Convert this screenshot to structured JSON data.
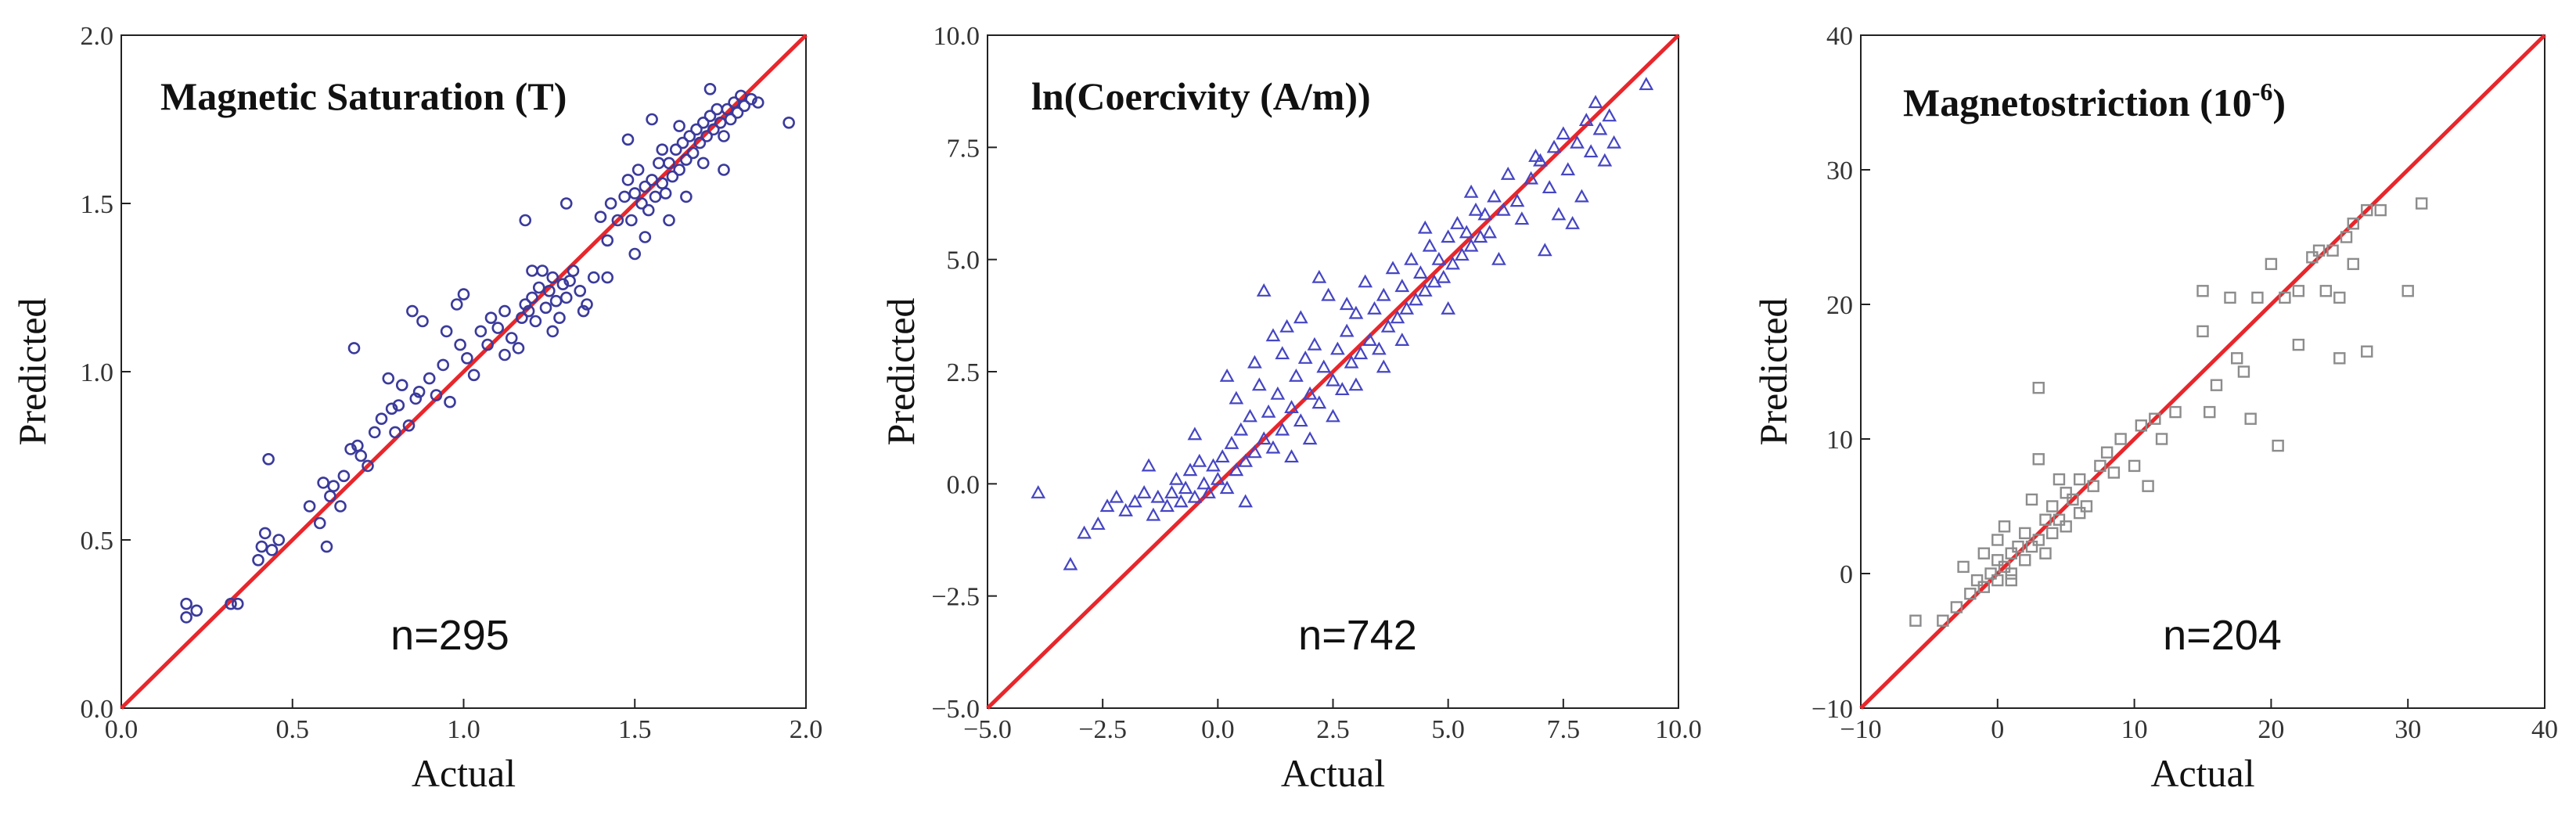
{
  "colors": {
    "identity_line": "#e8262b",
    "circle_marker": "#3a3a9c",
    "triangle_marker": "#4545c4",
    "square_marker": "#8c8c8c"
  },
  "chart_data": [
    {
      "type": "scatter",
      "title": "Magnetic Saturation (T)",
      "xlabel": "Actual",
      "ylabel": "Predicted",
      "xlim": [
        0.0,
        2.0
      ],
      "ylim": [
        0.0,
        2.0
      ],
      "xticks": [
        "0.0",
        "0.5",
        "1.0",
        "1.5",
        "2.0"
      ],
      "yticks": [
        "0.0",
        "0.5",
        "1.0",
        "1.5",
        "2.0"
      ],
      "annotation": "n=295",
      "n": 295,
      "marker": "circle",
      "identity_line": true,
      "points": [
        [
          0.19,
          0.27
        ],
        [
          0.19,
          0.31
        ],
        [
          0.22,
          0.29
        ],
        [
          0.32,
          0.31
        ],
        [
          0.34,
          0.31
        ],
        [
          0.4,
          0.44
        ],
        [
          0.41,
          0.48
        ],
        [
          0.42,
          0.52
        ],
        [
          0.43,
          0.74
        ],
        [
          0.44,
          0.47
        ],
        [
          0.46,
          0.5
        ],
        [
          0.58,
          0.55
        ],
        [
          0.59,
          0.67
        ],
        [
          0.6,
          0.48
        ],
        [
          0.61,
          0.63
        ],
        [
          0.62,
          0.66
        ],
        [
          0.65,
          0.69
        ],
        [
          0.67,
          0.77
        ],
        [
          0.68,
          1.07
        ],
        [
          0.69,
          0.78
        ],
        [
          0.7,
          0.75
        ],
        [
          0.72,
          0.72
        ],
        [
          0.74,
          0.82
        ],
        [
          0.76,
          0.86
        ],
        [
          0.79,
          0.89
        ],
        [
          0.8,
          0.82
        ],
        [
          0.81,
          0.9
        ],
        [
          0.82,
          0.96
        ],
        [
          0.84,
          0.84
        ],
        [
          0.85,
          1.18
        ],
        [
          0.86,
          0.92
        ],
        [
          0.87,
          0.94
        ],
        [
          0.88,
          1.15
        ],
        [
          0.9,
          0.98
        ],
        [
          0.92,
          0.93
        ],
        [
          0.94,
          1.02
        ],
        [
          0.96,
          0.91
        ],
        [
          0.98,
          1.2
        ],
        [
          0.99,
          1.08
        ],
        [
          1.0,
          1.23
        ],
        [
          1.01,
          1.04
        ],
        [
          1.03,
          0.99
        ],
        [
          1.05,
          1.12
        ],
        [
          1.07,
          1.08
        ],
        [
          1.08,
          1.16
        ],
        [
          1.1,
          1.13
        ],
        [
          1.12,
          1.05
        ],
        [
          1.14,
          1.1
        ],
        [
          1.16,
          1.07
        ],
        [
          1.17,
          1.16
        ],
        [
          1.18,
          1.2
        ],
        [
          1.19,
          1.18
        ],
        [
          1.2,
          1.22
        ],
        [
          1.21,
          1.15
        ],
        [
          1.22,
          1.25
        ],
        [
          1.23,
          1.3
        ],
        [
          1.24,
          1.19
        ],
        [
          1.25,
          1.24
        ],
        [
          1.26,
          1.28
        ],
        [
          1.27,
          1.21
        ],
        [
          1.28,
          1.16
        ],
        [
          1.29,
          1.26
        ],
        [
          1.3,
          1.22
        ],
        [
          1.31,
          1.27
        ],
        [
          1.32,
          1.3
        ],
        [
          1.34,
          1.24
        ],
        [
          1.36,
          1.2
        ],
        [
          1.38,
          1.28
        ],
        [
          1.4,
          1.46
        ],
        [
          1.42,
          1.39
        ],
        [
          1.43,
          1.5
        ],
        [
          1.45,
          1.45
        ],
        [
          1.47,
          1.52
        ],
        [
          1.48,
          1.57
        ],
        [
          1.49,
          1.45
        ],
        [
          1.5,
          1.53
        ],
        [
          1.51,
          1.6
        ],
        [
          1.52,
          1.5
        ],
        [
          1.53,
          1.55
        ],
        [
          1.54,
          1.48
        ],
        [
          1.55,
          1.57
        ],
        [
          1.56,
          1.52
        ],
        [
          1.57,
          1.62
        ],
        [
          1.58,
          1.56
        ],
        [
          1.59,
          1.53
        ],
        [
          1.6,
          1.62
        ],
        [
          1.61,
          1.58
        ],
        [
          1.62,
          1.66
        ],
        [
          1.63,
          1.6
        ],
        [
          1.64,
          1.68
        ],
        [
          1.65,
          1.63
        ],
        [
          1.66,
          1.7
        ],
        [
          1.67,
          1.65
        ],
        [
          1.68,
          1.72
        ],
        [
          1.69,
          1.68
        ],
        [
          1.7,
          1.74
        ],
        [
          1.71,
          1.7
        ],
        [
          1.72,
          1.76
        ],
        [
          1.73,
          1.72
        ],
        [
          1.74,
          1.78
        ],
        [
          1.75,
          1.74
        ],
        [
          1.76,
          1.7
        ],
        [
          1.77,
          1.78
        ],
        [
          1.78,
          1.75
        ],
        [
          1.79,
          1.8
        ],
        [
          1.8,
          1.77
        ],
        [
          1.81,
          1.82
        ],
        [
          1.82,
          1.79
        ],
        [
          1.84,
          1.81
        ],
        [
          1.86,
          1.8
        ],
        [
          1.95,
          1.74
        ],
        [
          1.18,
          1.45
        ],
        [
          1.3,
          1.5
        ],
        [
          1.42,
          1.28
        ],
        [
          1.53,
          1.4
        ],
        [
          1.6,
          1.45
        ],
        [
          1.65,
          1.52
        ],
        [
          1.7,
          1.62
        ],
        [
          1.55,
          1.75
        ],
        [
          1.48,
          1.69
        ],
        [
          1.5,
          1.35
        ],
        [
          1.2,
          1.3
        ],
        [
          1.12,
          1.18
        ],
        [
          0.95,
          1.12
        ],
        [
          0.78,
          0.98
        ],
        [
          0.64,
          0.6
        ],
        [
          0.55,
          0.6
        ],
        [
          1.35,
          1.18
        ],
        [
          1.26,
          1.12
        ],
        [
          1.58,
          1.66
        ],
        [
          1.63,
          1.73
        ],
        [
          1.76,
          1.6
        ],
        [
          1.72,
          1.84
        ]
      ]
    },
    {
      "type": "scatter",
      "title": "ln(Coercivity (A/m))",
      "xlabel": "Actual",
      "ylabel": "Predicted",
      "xlim": [
        -5.0,
        10.0
      ],
      "ylim": [
        -5.0,
        10.0
      ],
      "xticks": [
        "−5.0",
        "−2.5",
        "0.0",
        "2.5",
        "5.0",
        "7.5",
        "10.0"
      ],
      "yticks": [
        "−5.0",
        "−2.5",
        "0.0",
        "2.5",
        "5.0",
        "7.5",
        "10.0"
      ],
      "annotation": "n=742",
      "n": 742,
      "marker": "triangle",
      "identity_line": true,
      "points": [
        [
          -3.9,
          -0.2
        ],
        [
          -3.2,
          -1.8
        ],
        [
          -2.9,
          -1.1
        ],
        [
          -2.4,
          -0.5
        ],
        [
          -2.2,
          -0.3
        ],
        [
          -2.0,
          -0.6
        ],
        [
          -1.8,
          -0.4
        ],
        [
          -1.6,
          -0.2
        ],
        [
          -1.4,
          -0.7
        ],
        [
          -1.3,
          -0.3
        ],
        [
          -1.1,
          -0.5
        ],
        [
          -1.0,
          -0.2
        ],
        [
          -0.9,
          0.1
        ],
        [
          -0.8,
          -0.4
        ],
        [
          -0.7,
          -0.1
        ],
        [
          -0.6,
          0.3
        ],
        [
          -0.5,
          -0.3
        ],
        [
          -0.4,
          0.5
        ],
        [
          -0.3,
          0.0
        ],
        [
          -0.2,
          -0.2
        ],
        [
          -0.1,
          0.4
        ],
        [
          0.0,
          0.1
        ],
        [
          0.1,
          0.6
        ],
        [
          0.2,
          -0.1
        ],
        [
          0.3,
          0.9
        ],
        [
          0.4,
          0.3
        ],
        [
          0.5,
          1.2
        ],
        [
          0.6,
          0.5
        ],
        [
          0.7,
          1.5
        ],
        [
          0.8,
          0.7
        ],
        [
          0.9,
          2.2
        ],
        [
          1.0,
          1.0
        ],
        [
          1.0,
          4.3
        ],
        [
          1.1,
          1.6
        ],
        [
          1.2,
          0.8
        ],
        [
          1.3,
          2.0
        ],
        [
          1.4,
          1.2
        ],
        [
          1.5,
          3.5
        ],
        [
          1.6,
          1.7
        ],
        [
          1.7,
          2.4
        ],
        [
          1.8,
          1.4
        ],
        [
          1.9,
          2.8
        ],
        [
          2.0,
          2.0
        ],
        [
          2.1,
          3.1
        ],
        [
          2.2,
          1.8
        ],
        [
          2.3,
          2.6
        ],
        [
          2.4,
          4.2
        ],
        [
          2.5,
          2.3
        ],
        [
          2.6,
          3.0
        ],
        [
          2.7,
          2.1
        ],
        [
          2.8,
          3.4
        ],
        [
          2.9,
          2.7
        ],
        [
          3.0,
          3.8
        ],
        [
          3.1,
          2.9
        ],
        [
          3.2,
          4.5
        ],
        [
          3.3,
          3.2
        ],
        [
          3.4,
          3.9
        ],
        [
          3.5,
          3.0
        ],
        [
          3.6,
          4.2
        ],
        [
          3.7,
          3.5
        ],
        [
          3.8,
          4.8
        ],
        [
          3.9,
          3.7
        ],
        [
          4.0,
          4.4
        ],
        [
          4.1,
          3.9
        ],
        [
          4.2,
          5.0
        ],
        [
          4.3,
          4.1
        ],
        [
          4.4,
          4.7
        ],
        [
          4.5,
          4.3
        ],
        [
          4.6,
          5.3
        ],
        [
          4.7,
          4.5
        ],
        [
          4.8,
          5.0
        ],
        [
          4.9,
          4.6
        ],
        [
          5.0,
          5.5
        ],
        [
          5.1,
          4.9
        ],
        [
          5.2,
          5.8
        ],
        [
          5.3,
          5.1
        ],
        [
          5.4,
          5.6
        ],
        [
          5.5,
          5.3
        ],
        [
          5.6,
          6.1
        ],
        [
          5.7,
          5.5
        ],
        [
          5.8,
          6.0
        ],
        [
          5.9,
          5.6
        ],
        [
          6.0,
          6.4
        ],
        [
          6.2,
          6.1
        ],
        [
          6.3,
          6.9
        ],
        [
          6.5,
          6.3
        ],
        [
          6.6,
          5.9
        ],
        [
          6.8,
          6.8
        ],
        [
          7.0,
          7.2
        ],
        [
          7.1,
          5.2
        ],
        [
          7.2,
          6.6
        ],
        [
          7.3,
          7.5
        ],
        [
          7.4,
          6.0
        ],
        [
          7.5,
          7.8
        ],
        [
          7.6,
          7.0
        ],
        [
          7.7,
          5.8
        ],
        [
          7.8,
          7.6
        ],
        [
          7.9,
          6.4
        ],
        [
          8.0,
          8.1
        ],
        [
          8.1,
          7.4
        ],
        [
          8.2,
          8.5
        ],
        [
          8.3,
          7.9
        ],
        [
          8.5,
          8.2
        ],
        [
          8.6,
          7.6
        ],
        [
          9.3,
          8.9
        ],
        [
          0.4,
          1.9
        ],
        [
          0.8,
          2.7
        ],
        [
          1.2,
          3.3
        ],
        [
          1.6,
          0.6
        ],
        [
          2.0,
          1.0
        ],
        [
          2.5,
          1.5
        ],
        [
          3.0,
          2.2
        ],
        [
          -0.5,
          1.1
        ],
        [
          0.2,
          2.4
        ],
        [
          1.4,
          2.9
        ],
        [
          4.5,
          5.7
        ],
        [
          5.0,
          3.9
        ],
        [
          5.5,
          6.5
        ],
        [
          6.1,
          5.0
        ],
        [
          3.6,
          2.6
        ],
        [
          2.2,
          4.6
        ],
        [
          -1.5,
          0.4
        ],
        [
          -2.6,
          -0.9
        ],
        [
          0.6,
          -0.4
        ],
        [
          1.8,
          3.7
        ],
        [
          2.8,
          4.0
        ],
        [
          4.0,
          3.2
        ],
        [
          6.9,
          7.3
        ],
        [
          8.4,
          7.2
        ]
      ]
    },
    {
      "type": "scatter",
      "title": "Magnetostriction (10",
      "title_superscript": "-6",
      "title_suffix": ")",
      "xlabel": "Actual",
      "ylabel": "Predicted",
      "xlim": [
        -10,
        40
      ],
      "ylim": [
        -10,
        40
      ],
      "xticks": [
        "−10",
        "0",
        "10",
        "20",
        "30",
        "40"
      ],
      "yticks": [
        "−10",
        "0",
        "10",
        "20",
        "30",
        "40"
      ],
      "annotation": "n=204",
      "n": 204,
      "marker": "square",
      "identity_line": true,
      "points": [
        [
          -6,
          -3.5
        ],
        [
          -4,
          -3.5
        ],
        [
          -3,
          -2.5
        ],
        [
          -2.5,
          0.5
        ],
        [
          -2,
          -1.5
        ],
        [
          -1.5,
          -0.5
        ],
        [
          -1,
          -1
        ],
        [
          -0.5,
          0
        ],
        [
          0,
          -0.5
        ],
        [
          0,
          1
        ],
        [
          0,
          2.5
        ],
        [
          0.5,
          0.5
        ],
        [
          1,
          1.5
        ],
        [
          1,
          -0.5
        ],
        [
          1.5,
          2
        ],
        [
          2,
          1
        ],
        [
          2,
          3
        ],
        [
          2.5,
          2
        ],
        [
          3,
          13.8
        ],
        [
          3,
          8.5
        ],
        [
          3,
          2.5
        ],
        [
          3.5,
          4
        ],
        [
          4,
          3
        ],
        [
          4,
          5
        ],
        [
          4.5,
          4
        ],
        [
          5,
          6
        ],
        [
          5,
          3.5
        ],
        [
          5.5,
          5.5
        ],
        [
          6,
          7
        ],
        [
          6,
          4.5
        ],
        [
          7,
          6.5
        ],
        [
          7.5,
          8
        ],
        [
          8,
          9
        ],
        [
          8.5,
          7.5
        ],
        [
          9,
          10
        ],
        [
          10,
          8
        ],
        [
          10.5,
          11
        ],
        [
          11,
          6.5
        ],
        [
          11.5,
          11.5
        ],
        [
          12,
          10
        ],
        [
          13,
          12
        ],
        [
          15,
          21
        ],
        [
          15,
          18
        ],
        [
          15.5,
          12
        ],
        [
          16,
          14
        ],
        [
          17,
          20.5
        ],
        [
          17.5,
          16
        ],
        [
          18,
          15
        ],
        [
          18.5,
          11.5
        ],
        [
          19,
          20.5
        ],
        [
          20,
          23
        ],
        [
          20.5,
          9.5
        ],
        [
          21,
          20.5
        ],
        [
          22,
          21
        ],
        [
          22,
          17
        ],
        [
          23,
          23.5
        ],
        [
          23.5,
          24
        ],
        [
          24,
          21
        ],
        [
          24.5,
          24
        ],
        [
          25,
          20.5
        ],
        [
          25,
          16
        ],
        [
          25.5,
          25
        ],
        [
          26,
          26
        ],
        [
          26,
          23
        ],
        [
          27,
          27
        ],
        [
          27,
          16.5
        ],
        [
          28,
          27
        ],
        [
          30,
          21
        ],
        [
          31,
          27.5
        ],
        [
          1,
          0
        ],
        [
          2.5,
          5.5
        ],
        [
          3.5,
          1.5
        ],
        [
          4.5,
          7
        ],
        [
          6.5,
          5
        ],
        [
          -1,
          1.5
        ],
        [
          0.5,
          3.5
        ]
      ]
    }
  ]
}
